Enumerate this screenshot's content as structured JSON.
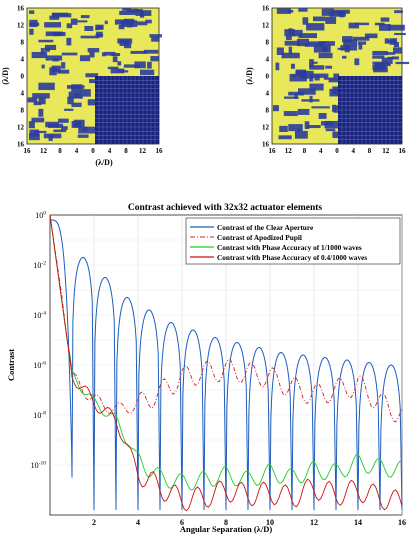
{
  "top_panels": {
    "left": {
      "ylabel": "(λ/D)",
      "xlabel": "(λ/D)",
      "y_ticks": [
        "16",
        "12",
        "8",
        "4",
        "0",
        "4",
        "8",
        "12",
        "16"
      ],
      "x_ticks": [
        "16",
        "12",
        "8",
        "4",
        "0",
        "4",
        "8",
        "12",
        "16"
      ]
    },
    "right": {
      "ylabel": "(λ/D)",
      "y_ticks": [
        "16",
        "12",
        "8",
        "4",
        "0",
        "4",
        "8",
        "12",
        "16"
      ],
      "x_ticks": [
        "16",
        "12",
        "8",
        "4",
        "0",
        "4",
        "8",
        "12",
        "16"
      ]
    },
    "colors": {
      "background": "#e8e85a",
      "mask": "#2b3d9c",
      "dark_hole": "#1a237a"
    }
  },
  "chart_data": {
    "type": "line",
    "title": "Contrast achieved with 32x32 actuator elements",
    "xlabel": "Angular Separation (λ/D)",
    "ylabel": "Contrast",
    "xlim": [
      0,
      16
    ],
    "ylim_log10": [
      -12,
      0
    ],
    "x_ticks": [
      "2",
      "4",
      "6",
      "8",
      "10",
      "12",
      "14",
      "16"
    ],
    "y_ticks": [
      {
        "base": "10",
        "exp": "0",
        "value": 0
      },
      {
        "base": "10",
        "exp": "-2",
        "value": -2
      },
      {
        "base": "10",
        "exp": "-4",
        "value": -4
      },
      {
        "base": "10",
        "exp": "-6",
        "value": -6
      },
      {
        "base": "10",
        "exp": "-8",
        "value": -8
      },
      {
        "base": "10",
        "exp": "-10",
        "value": -10
      }
    ],
    "series": [
      {
        "name": "Contrast of the Clear Aperture",
        "color": "#1f5fbf",
        "style": "solid",
        "peaks_log10": [
          [
            1.4,
            -1.7
          ],
          [
            2.4,
            -2.5
          ],
          [
            3.4,
            -3.3
          ],
          [
            4.4,
            -3.8
          ],
          [
            5.4,
            -4.3
          ],
          [
            6.4,
            -4.6
          ],
          [
            7.4,
            -4.9
          ],
          [
            8.4,
            -5.1
          ],
          [
            9.4,
            -5.3
          ],
          [
            10.4,
            -5.5
          ],
          [
            11.4,
            -5.6
          ],
          [
            12.4,
            -5.7
          ],
          [
            13.4,
            -5.8
          ],
          [
            14.4,
            -5.9
          ],
          [
            15.4,
            -6.0
          ]
        ]
      },
      {
        "name": "Contrast of Apodized Pupil",
        "color": "#cc2222",
        "style": "dashdot",
        "points_log10": [
          [
            0,
            0
          ],
          [
            0.5,
            -3
          ],
          [
            1,
            -6.5
          ],
          [
            2,
            -7.4
          ],
          [
            3,
            -7.8
          ],
          [
            4,
            -7.6
          ],
          [
            5,
            -7.1
          ],
          [
            6,
            -6.5
          ],
          [
            7,
            -6.3
          ],
          [
            8,
            -6.2
          ],
          [
            9,
            -6.3
          ],
          [
            10,
            -6.5
          ],
          [
            11,
            -6.9
          ],
          [
            12,
            -7.2
          ],
          [
            13,
            -7.0
          ],
          [
            14,
            -6.8
          ],
          [
            15,
            -7.5
          ],
          [
            16,
            -8.0
          ]
        ]
      },
      {
        "name": "Contrast with Phase Accuracy of 1/1000 waves",
        "color": "#22cc22",
        "style": "solid",
        "points_log10": [
          [
            0,
            0
          ],
          [
            1,
            -6.4
          ],
          [
            2,
            -7.5
          ],
          [
            3,
            -8.2
          ],
          [
            4,
            -9.8
          ],
          [
            5,
            -10.5
          ],
          [
            6,
            -10.7
          ],
          [
            7,
            -10.6
          ],
          [
            8,
            -10.4
          ],
          [
            9,
            -10.6
          ],
          [
            10,
            -10.3
          ],
          [
            11,
            -10.5
          ],
          [
            12,
            -10.2
          ],
          [
            13,
            -10.3
          ],
          [
            14,
            -9.9
          ],
          [
            15,
            -10.1
          ],
          [
            16,
            -10.2
          ]
        ]
      },
      {
        "name": "Contrast with Phase Accuracy of 0.4/1000 waves",
        "color": "#cc1111",
        "style": "solid",
        "points_log10": [
          [
            0,
            0
          ],
          [
            1,
            -6.4
          ],
          [
            2,
            -7.5
          ],
          [
            3,
            -8.2
          ],
          [
            4,
            -10.3
          ],
          [
            5,
            -10.9
          ],
          [
            6,
            -11.4
          ],
          [
            7,
            -11.3
          ],
          [
            8,
            -11.0
          ],
          [
            9,
            -11.2
          ],
          [
            10,
            -11.1
          ],
          [
            11,
            -11.3
          ],
          [
            12,
            -10.9
          ],
          [
            13,
            -11.2
          ],
          [
            14,
            -11.0
          ],
          [
            15,
            -11.3
          ],
          [
            16,
            -11.5
          ]
        ]
      }
    ],
    "legend_position": "top-right"
  }
}
